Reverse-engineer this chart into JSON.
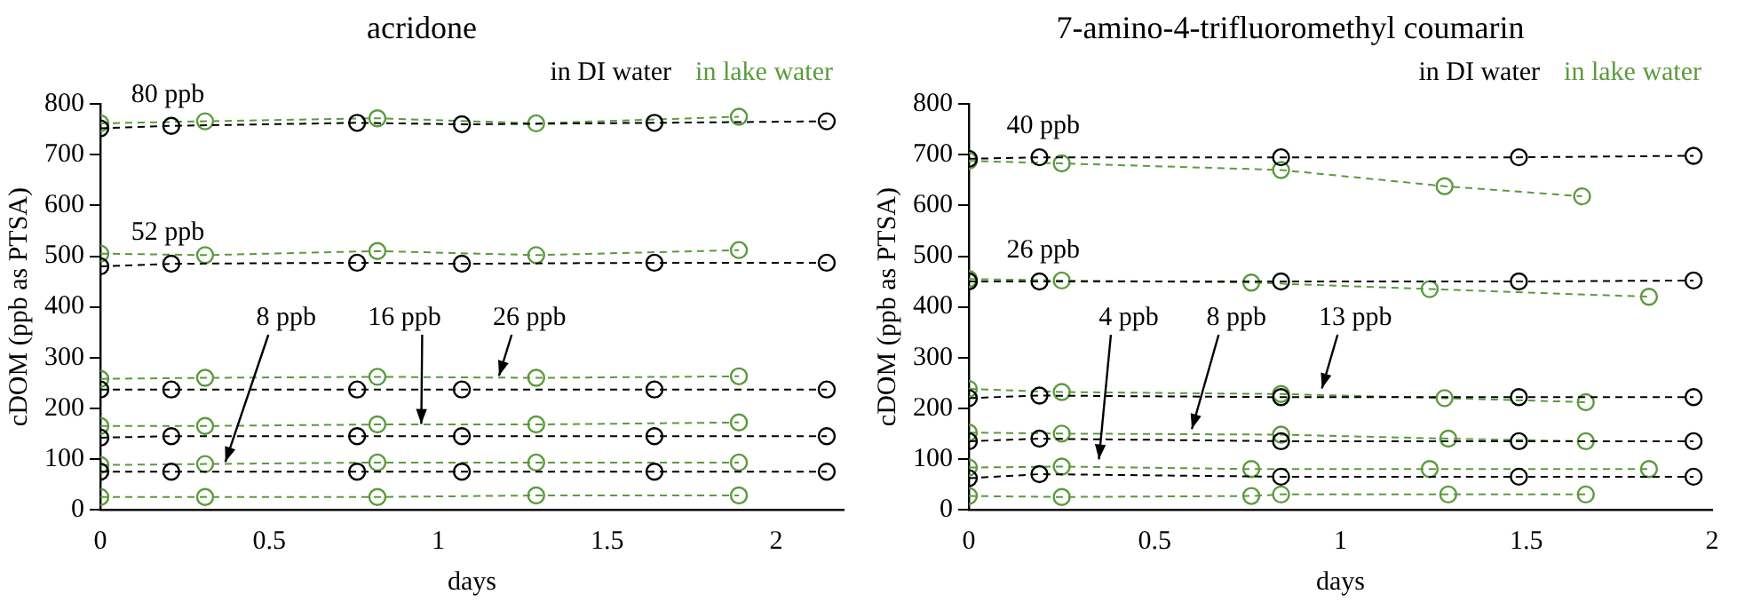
{
  "chart_data": [
    {
      "type": "line",
      "title": "acridone",
      "xlabel": "days",
      "ylabel": "cDOM (ppb as PTSA)",
      "xlim": [
        0,
        2.2
      ],
      "xticks": [
        0,
        0.5,
        1,
        1.5,
        2
      ],
      "ylim": [
        0,
        800
      ],
      "yticks": [
        0,
        100,
        200,
        300,
        400,
        500,
        600,
        700,
        800
      ],
      "marker": "circle",
      "line_style": "dashed",
      "legend": "top right",
      "grid": false,
      "series": [
        {
          "name": "in DI water",
          "color": "#000000",
          "x": [
            0,
            0.21,
            0.76,
            1.07,
            1.64,
            2.15
          ],
          "values": [
            752,
            757,
            763,
            760,
            763,
            766
          ]
        },
        {
          "name": "in lake water",
          "color": "#5b9a3c",
          "x": [
            0,
            0.31,
            0.82,
            1.29,
            1.89
          ],
          "values": [
            762,
            766,
            772,
            762,
            775
          ]
        },
        {
          "color": "#000000",
          "x": [
            0,
            0.21,
            0.76,
            1.07,
            1.64,
            2.15
          ],
          "values": [
            480,
            485,
            487,
            485,
            487,
            487
          ]
        },
        {
          "color": "#5b9a3c",
          "x": [
            0,
            0.31,
            0.82,
            1.29,
            1.89
          ],
          "values": [
            505,
            502,
            510,
            502,
            512
          ]
        },
        {
          "color": "#000000",
          "x": [
            0,
            0.21,
            0.76,
            1.07,
            1.64,
            2.15
          ],
          "values": [
            237,
            237,
            237,
            237,
            237,
            237
          ]
        },
        {
          "color": "#5b9a3c",
          "x": [
            0,
            0.31,
            0.82,
            1.29,
            1.89
          ],
          "values": [
            258,
            260,
            262,
            260,
            263
          ]
        },
        {
          "color": "#000000",
          "x": [
            0,
            0.21,
            0.76,
            1.07,
            1.64,
            2.15
          ],
          "values": [
            142,
            145,
            145,
            145,
            145,
            145
          ]
        },
        {
          "color": "#5b9a3c",
          "x": [
            0,
            0.31,
            0.82,
            1.29,
            1.89
          ],
          "values": [
            165,
            165,
            168,
            168,
            172
          ]
        },
        {
          "color": "#000000",
          "x": [
            0,
            0.21,
            0.76,
            1.07,
            1.64,
            2.15
          ],
          "values": [
            75,
            75,
            75,
            75,
            75,
            75
          ]
        },
        {
          "color": "#5b9a3c",
          "x": [
            0,
            0.31,
            0.82,
            1.29,
            1.89
          ],
          "values": [
            88,
            90,
            93,
            93,
            93
          ]
        },
        {
          "color": "#5b9a3c",
          "x": [
            0,
            0.31,
            0.82,
            1.29,
            1.89
          ],
          "values": [
            25,
            25,
            25,
            28,
            28
          ]
        }
      ],
      "annotations": [
        {
          "text": "80 ppb",
          "x": 0.2,
          "y": 757
        },
        {
          "text": "52 ppb",
          "x": 0.2,
          "y": 485
        },
        {
          "text": "8 ppb",
          "x": 0.37,
          "y": 80
        },
        {
          "text": "16 ppb",
          "x": 0.95,
          "y": 155
        },
        {
          "text": "26 ppb",
          "x": 1.18,
          "y": 250
        }
      ]
    },
    {
      "type": "line",
      "title": "7-amino-4-trifluoromethyl coumarin",
      "xlabel": "days",
      "ylabel": "cDOM (ppb as PTSA)",
      "xlim": [
        0,
        2
      ],
      "xticks": [
        0,
        0.5,
        1,
        1.5,
        2
      ],
      "ylim": [
        0,
        800
      ],
      "yticks": [
        0,
        100,
        200,
        300,
        400,
        500,
        600,
        700,
        800
      ],
      "marker": "circle",
      "line_style": "dashed",
      "legend": "top right",
      "grid": false,
      "series": [
        {
          "name": "in DI water",
          "color": "#000000",
          "x": [
            0,
            0.19,
            0.84,
            1.48,
            1.95
          ],
          "values": [
            692,
            695,
            695,
            695,
            698
          ]
        },
        {
          "name": "in lake water",
          "color": "#5b9a3c",
          "x": [
            0,
            0.25,
            0.84,
            1.28,
            1.65
          ],
          "values": [
            688,
            683,
            670,
            638,
            618
          ]
        },
        {
          "color": "#000000",
          "x": [
            0,
            0.19,
            0.84,
            1.48,
            1.95
          ],
          "values": [
            450,
            450,
            450,
            450,
            452
          ]
        },
        {
          "color": "#5b9a3c",
          "x": [
            0,
            0.25,
            0.76,
            1.24,
            1.83
          ],
          "values": [
            455,
            452,
            448,
            435,
            420
          ]
        },
        {
          "color": "#000000",
          "x": [
            0,
            0.19,
            0.84,
            1.48,
            1.95
          ],
          "values": [
            220,
            225,
            222,
            222,
            222
          ]
        },
        {
          "color": "#5b9a3c",
          "x": [
            0,
            0.25,
            0.84,
            1.28,
            1.66
          ],
          "values": [
            238,
            232,
            228,
            220,
            212
          ]
        },
        {
          "color": "#000000",
          "x": [
            0,
            0.19,
            0.84,
            1.48,
            1.95
          ],
          "values": [
            135,
            140,
            135,
            135,
            135
          ]
        },
        {
          "color": "#5b9a3c",
          "x": [
            0,
            0.25,
            0.84,
            1.29,
            1.66
          ],
          "values": [
            152,
            150,
            148,
            140,
            135
          ]
        },
        {
          "color": "#000000",
          "x": [
            0,
            0.19,
            0.84,
            1.48,
            1.95
          ],
          "values": [
            62,
            70,
            65,
            65,
            65
          ]
        },
        {
          "color": "#5b9a3c",
          "x": [
            0,
            0.25,
            0.76,
            1.24,
            1.83
          ],
          "values": [
            83,
            85,
            80,
            80,
            80
          ]
        },
        {
          "color": "#5b9a3c",
          "x": [
            0,
            0.25,
            0.76,
            0.84,
            1.29,
            1.66
          ],
          "values": [
            27,
            25,
            27,
            30,
            30,
            30
          ]
        }
      ],
      "annotations": [
        {
          "text": "40 ppb",
          "x": 0.2,
          "y": 695
        },
        {
          "text": "26 ppb",
          "x": 0.2,
          "y": 450
        },
        {
          "text": "4 ppb",
          "x": 0.35,
          "y": 85
        },
        {
          "text": "8 ppb",
          "x": 0.6,
          "y": 145
        },
        {
          "text": "13 ppb",
          "x": 0.95,
          "y": 225
        }
      ]
    }
  ]
}
